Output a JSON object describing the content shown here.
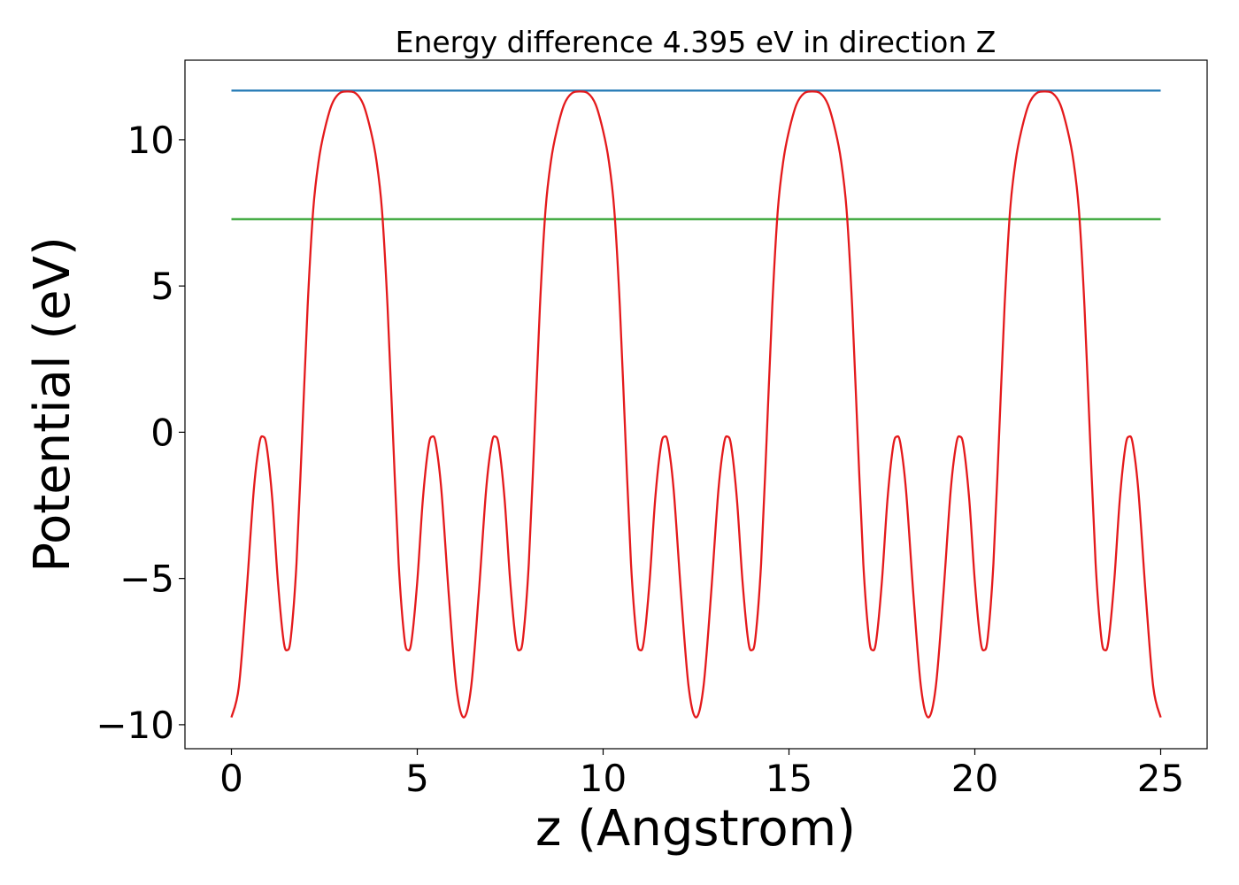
{
  "chart_data": {
    "type": "line",
    "title": "Energy difference 4.395 eV in direction Z",
    "xlabel": "z (Angstrom)",
    "ylabel": "Potential (eV)",
    "xlim": [
      -1.25,
      26.25
    ],
    "ylim": [
      -10.82,
      12.72
    ],
    "xticks": [
      0,
      5,
      10,
      15,
      20,
      25
    ],
    "yticks": [
      {
        "value": -10,
        "label": "−10"
      },
      {
        "value": -5,
        "label": "−5"
      },
      0,
      5,
      10
    ],
    "series": [
      {
        "color": "#e41a1c",
        "x": [
          0,
          0.2,
          0.4,
          0.6,
          0.75,
          0.85,
          0.95,
          1.1,
          1.25,
          1.4,
          1.5,
          1.6,
          1.75,
          1.9,
          2.05,
          2.2,
          2.35,
          2.5,
          2.7,
          2.9,
          3.125,
          3.35,
          3.55,
          3.75,
          3.9,
          4.05,
          4.2,
          4.35,
          4.5,
          4.65,
          4.75,
          4.85,
          5.0,
          5.15,
          5.3,
          5.4,
          5.5,
          5.65,
          5.85,
          6.05,
          6.25,
          6.45,
          6.65,
          6.85,
          7.0,
          7.1,
          7.2,
          7.35,
          7.5,
          7.65,
          7.75,
          7.85,
          8.0,
          8.15,
          8.3,
          8.45,
          8.6,
          8.75,
          8.95,
          9.15,
          9.375,
          9.6,
          9.8,
          10.0,
          10.15,
          10.3,
          10.45,
          10.6,
          10.75,
          10.9,
          11.0,
          11.1,
          11.25,
          11.4,
          11.55,
          11.65,
          11.75,
          11.9,
          12.1,
          12.3,
          12.5,
          12.7,
          12.9,
          13.1,
          13.25,
          13.35,
          13.45,
          13.6,
          13.75,
          13.9,
          14.0,
          14.1,
          14.25,
          14.4,
          14.55,
          14.7,
          14.85,
          15.0,
          15.2,
          15.4,
          15.625,
          15.85,
          16.05,
          16.25,
          16.4,
          16.55,
          16.7,
          16.85,
          17.0,
          17.15,
          17.25,
          17.35,
          17.5,
          17.65,
          17.8,
          17.9,
          18.0,
          18.15,
          18.35,
          18.55,
          18.75,
          18.95,
          19.15,
          19.35,
          19.5,
          19.6,
          19.7,
          19.85,
          20.0,
          20.15,
          20.25,
          20.35,
          20.5,
          20.65,
          20.8,
          20.95,
          21.1,
          21.25,
          21.45,
          21.65,
          21.875,
          22.1,
          22.3,
          22.5,
          22.65,
          22.8,
          22.95,
          23.1,
          23.25,
          23.4,
          23.5,
          23.6,
          23.75,
          23.9,
          24.05,
          24.15,
          24.25,
          24.4,
          24.6,
          24.8,
          25
        ],
        "values": [
          -9.75,
          -8.7,
          -5.6,
          -2.0,
          -0.4,
          -0.15,
          -0.5,
          -2.3,
          -5.1,
          -7.1,
          -7.45,
          -7.0,
          -4.5,
          -0.2,
          4.3,
          7.6,
          9.3,
          10.3,
          11.2,
          11.58,
          11.65,
          11.58,
          11.2,
          10.3,
          9.3,
          7.6,
          4.3,
          -0.2,
          -4.5,
          -7.0,
          -7.45,
          -7.1,
          -5.1,
          -2.3,
          -0.5,
          -0.15,
          -0.4,
          -2.0,
          -5.6,
          -8.7,
          -9.75,
          -8.7,
          -5.6,
          -2.0,
          -0.4,
          -0.15,
          -0.5,
          -2.3,
          -5.1,
          -7.1,
          -7.45,
          -7.0,
          -4.5,
          -0.2,
          4.3,
          7.6,
          9.3,
          10.3,
          11.2,
          11.58,
          11.65,
          11.58,
          11.2,
          10.3,
          9.3,
          7.6,
          4.3,
          -0.2,
          -4.5,
          -7.0,
          -7.45,
          -7.1,
          -5.1,
          -2.3,
          -0.5,
          -0.15,
          -0.4,
          -2.0,
          -5.6,
          -8.7,
          -9.75,
          -8.7,
          -5.6,
          -2.0,
          -0.4,
          -0.15,
          -0.5,
          -2.3,
          -5.1,
          -7.1,
          -7.45,
          -7.0,
          -4.5,
          -0.2,
          4.3,
          7.6,
          9.3,
          10.3,
          11.2,
          11.58,
          11.65,
          11.58,
          11.2,
          10.3,
          9.3,
          7.6,
          4.3,
          -0.2,
          -4.5,
          -7.0,
          -7.45,
          -7.1,
          -5.1,
          -2.3,
          -0.5,
          -0.15,
          -0.4,
          -2.0,
          -5.6,
          -8.7,
          -9.75,
          -8.7,
          -5.6,
          -2.0,
          -0.4,
          -0.15,
          -0.5,
          -2.3,
          -5.1,
          -7.1,
          -7.45,
          -7.0,
          -4.5,
          -0.2,
          4.3,
          7.6,
          9.3,
          10.3,
          11.2,
          11.58,
          11.65,
          11.58,
          11.2,
          10.3,
          9.3,
          7.6,
          4.3,
          -0.2,
          -4.5,
          -7.0,
          -7.45,
          -7.1,
          -5.1,
          -2.3,
          -0.5,
          -0.15,
          -0.4,
          -2.0,
          -5.6,
          -8.7,
          -9.75
        ]
      },
      {
        "color": "#1f77b4",
        "x": [
          0,
          25
        ],
        "values": [
          11.68,
          11.68
        ]
      },
      {
        "color": "#2ca02c",
        "x": [
          0,
          25
        ],
        "values": [
          7.285,
          7.285
        ]
      }
    ],
    "grid": false
  }
}
